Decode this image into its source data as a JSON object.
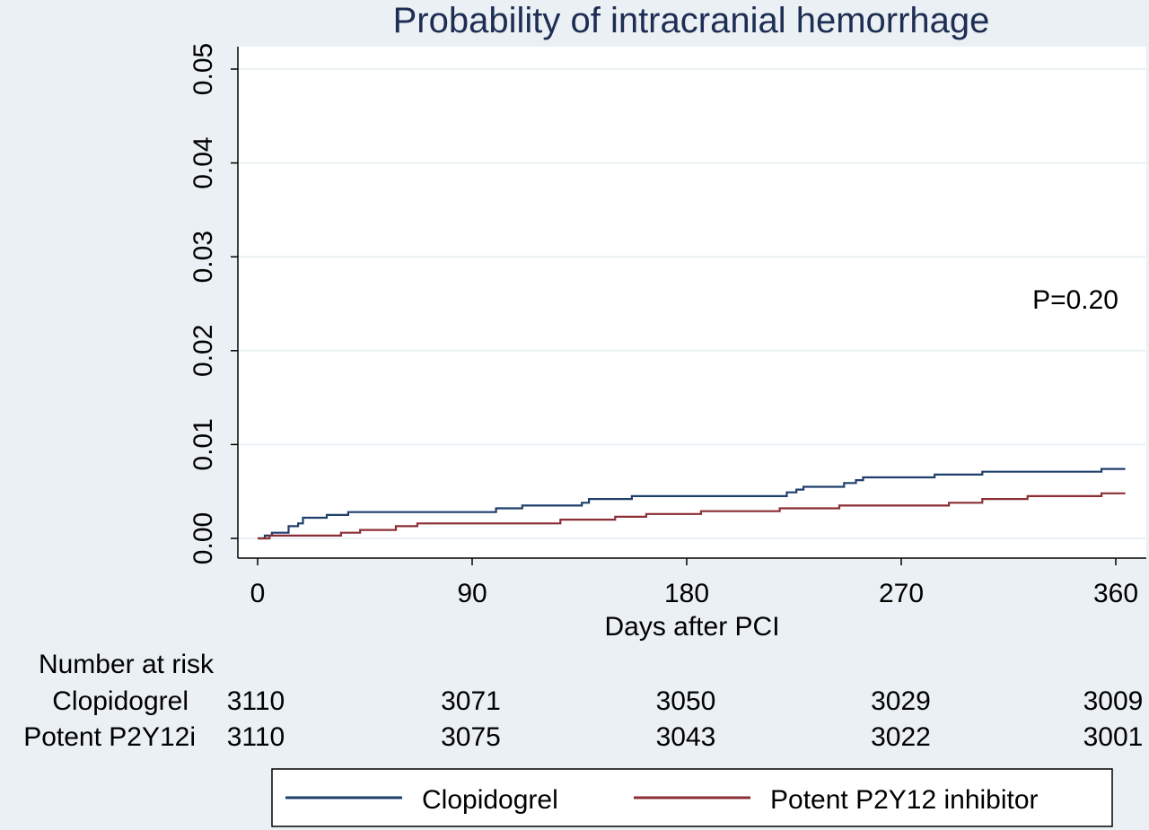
{
  "chart_data": {
    "type": "line",
    "title": "Probability of intracranial hemorrhage",
    "xlabel": "Days after PCI",
    "ylabel": "",
    "xlim": [
      0,
      365
    ],
    "ylim": [
      0,
      0.05
    ],
    "x_ticks": [
      "0",
      "90",
      "180",
      "270",
      "360"
    ],
    "y_ticks": [
      "0.00",
      "0.01",
      "0.02",
      "0.03",
      "0.04",
      "0.05"
    ],
    "grid": true,
    "annotation": "P=0.20",
    "legend_position": "bottom",
    "series": [
      {
        "name": "Clopidogrel",
        "color": "#1f3f6b",
        "step": true,
        "points": [
          [
            0,
            0
          ],
          [
            3,
            0.0003
          ],
          [
            6,
            0.0006
          ],
          [
            13,
            0.0013
          ],
          [
            17,
            0.0016
          ],
          [
            19,
            0.0022
          ],
          [
            29,
            0.0025
          ],
          [
            38,
            0.0028
          ],
          [
            100,
            0.0032
          ],
          [
            111,
            0.0035
          ],
          [
            136,
            0.0038
          ],
          [
            139,
            0.0042
          ],
          [
            157,
            0.0045
          ],
          [
            181,
            0.0045
          ],
          [
            219,
            0.0045
          ],
          [
            222,
            0.0049
          ],
          [
            226,
            0.0052
          ],
          [
            229,
            0.0055
          ],
          [
            246,
            0.0059
          ],
          [
            251,
            0.0062
          ],
          [
            254,
            0.0065
          ],
          [
            284,
            0.0068
          ],
          [
            304,
            0.0071
          ],
          [
            352,
            0.0071
          ],
          [
            354,
            0.0074
          ],
          [
            364,
            0.0074
          ]
        ]
      },
      {
        "name": "Potent P2Y12 inhibitor",
        "color": "#8b2f35",
        "step": true,
        "points": [
          [
            0,
            0
          ],
          [
            5,
            0.0003
          ],
          [
            35,
            0.0006
          ],
          [
            43,
            0.0009
          ],
          [
            58,
            0.0013
          ],
          [
            67,
            0.0016
          ],
          [
            127,
            0.002
          ],
          [
            150,
            0.0023
          ],
          [
            163,
            0.0026
          ],
          [
            186,
            0.0029
          ],
          [
            219,
            0.0032
          ],
          [
            244,
            0.0035
          ],
          [
            290,
            0.0038
          ],
          [
            304,
            0.0042
          ],
          [
            323,
            0.0045
          ],
          [
            354,
            0.0048
          ],
          [
            364,
            0.0048
          ]
        ]
      }
    ]
  },
  "risk_table": {
    "header": "Number at risk",
    "rows": [
      {
        "label": "Clopidogrel",
        "values": [
          "3110",
          "3071",
          "3050",
          "3029",
          "3009"
        ]
      },
      {
        "label": "Potent P2Y12i",
        "values": [
          "3110",
          "3075",
          "3043",
          "3022",
          "3001"
        ]
      }
    ]
  },
  "legend": {
    "items": [
      {
        "label": "Clopidogrel",
        "color": "#1f3f6b"
      },
      {
        "label": "Potent P2Y12 inhibitor",
        "color": "#8b2f35"
      }
    ]
  }
}
